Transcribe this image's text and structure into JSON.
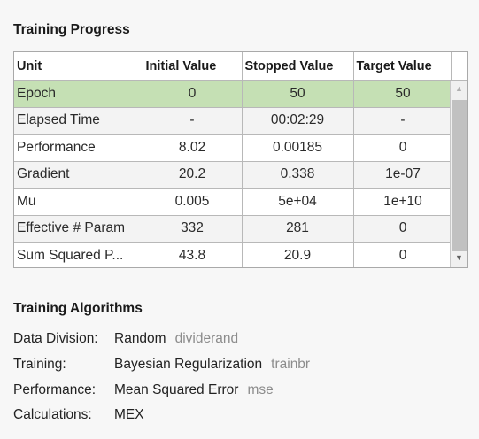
{
  "progress": {
    "title": "Training Progress",
    "columns": [
      "Unit",
      "Initial Value",
      "Stopped Value",
      "Target Value"
    ],
    "rows": [
      {
        "unit": "Epoch",
        "initial": "0",
        "stopped": "50",
        "target": "50",
        "selected": true
      },
      {
        "unit": "Elapsed Time",
        "initial": "-",
        "stopped": "00:02:29",
        "target": "-"
      },
      {
        "unit": "Performance",
        "initial": "8.02",
        "stopped": "0.00185",
        "target": "0"
      },
      {
        "unit": "Gradient",
        "initial": "20.2",
        "stopped": "0.338",
        "target": "1e-07"
      },
      {
        "unit": "Mu",
        "initial": "0.005",
        "stopped": "5e+04",
        "target": "1e+10"
      },
      {
        "unit": "Effective # Param",
        "initial": "332",
        "stopped": "281",
        "target": "0"
      },
      {
        "unit": "Sum Squared P...",
        "initial": "43.8",
        "stopped": "20.9",
        "target": "0"
      }
    ],
    "selected_row_color": "#c5e0b4"
  },
  "algorithms": {
    "title": "Training Algorithms",
    "items": [
      {
        "label": "Data Division:",
        "value": "Random",
        "code": "dividerand"
      },
      {
        "label": "Training:",
        "value": "Bayesian Regularization",
        "code": "trainbr"
      },
      {
        "label": "Performance:",
        "value": "Mean Squared Error",
        "code": "mse"
      },
      {
        "label": "Calculations:",
        "value": "MEX",
        "code": ""
      }
    ]
  }
}
